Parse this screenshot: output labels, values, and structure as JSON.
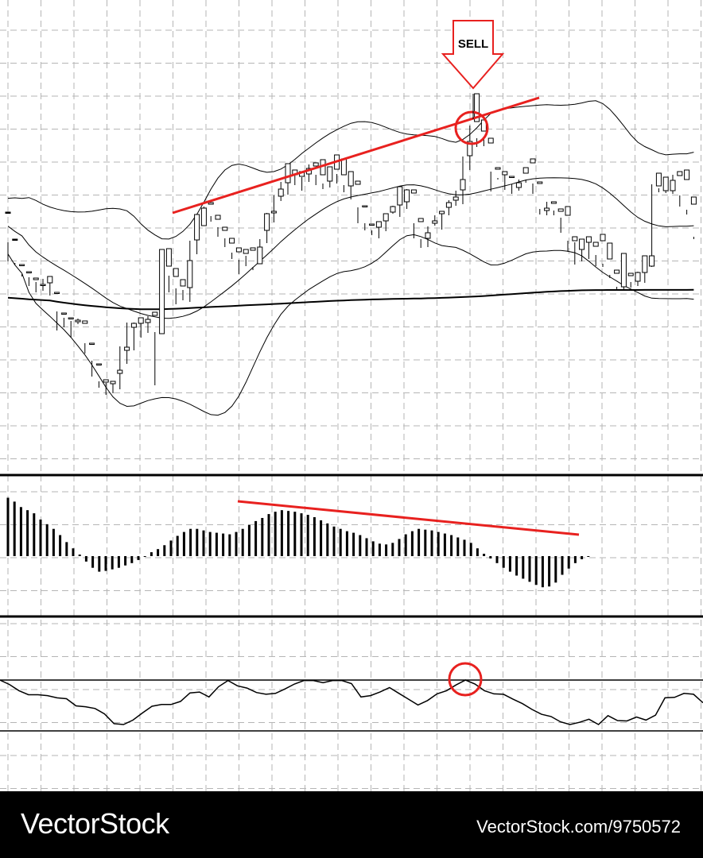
{
  "signal": {
    "label": "SELL"
  },
  "footer": {
    "brand": "VectorStock",
    "image_id": "VectorStock.com/9750572"
  },
  "colors": {
    "background": "#ffffff",
    "grid": "#b5b5b5",
    "candle": "#000000",
    "annotation": "#e8211f"
  },
  "chart_data": [
    {
      "type": "candlestick",
      "panel": "price",
      "overlays": [
        "bollinger-bands",
        "moving-average"
      ],
      "grid": true,
      "annotations": [
        "rising-trendline",
        "highlight-circle",
        "sell-arrow"
      ],
      "candles": [
        [
          267,
          268,
          329,
          305
        ],
        [
          301,
          302,
          331,
          333
        ],
        [
          334,
          333,
          345,
          348
        ],
        [
          343,
          342,
          349,
          360
        ],
        [
          352,
          350,
          355,
          368
        ],
        [
          358,
          358,
          351,
          366
        ],
        [
          356,
          348,
          355,
          372
        ],
        [
          368,
          368,
          392,
          416
        ],
        [
          395,
          394,
          400,
          412
        ],
        [
          401,
          400,
          404,
          425
        ],
        [
          405,
          403,
          401,
          408
        ],
        [
          407,
          404,
          432,
          445
        ],
        [
          432,
          432,
          454,
          474
        ],
        [
          458,
          458,
          480,
          488
        ],
        [
          481,
          478,
          482,
          497
        ],
        [
          483,
          480,
          483,
          495
        ],
        [
          470,
          466,
          436,
          490
        ],
        [
          441,
          437,
          406,
          458
        ],
        [
          412,
          407,
          406,
          441
        ],
        [
          407,
          400,
          407,
          425
        ],
        [
          406,
          402,
          398,
          419
        ],
        [
          397,
          393,
          418,
          485
        ],
        [
          420,
          314,
          332,
          365
        ],
        [
          335,
          313,
          347,
          368
        ],
        [
          348,
          338,
          363,
          383
        ],
        [
          360,
          352,
          365,
          378
        ],
        [
          362,
          328,
          303,
          380
        ],
        [
          302,
          270,
          281,
          320
        ],
        [
          284,
          262,
          260,
          266
        ],
        [
          257,
          255,
          272,
          279
        ],
        [
          276,
          271,
          286,
          298
        ],
        [
          290,
          286,
          300,
          311
        ],
        [
          306,
          300,
          318,
          326
        ],
        [
          317,
          312,
          327,
          345
        ],
        [
          319,
          314,
          322,
          335
        ],
        [
          315,
          312,
          336,
          340
        ],
        [
          332,
          311,
          301,
          316
        ],
        [
          290,
          269,
          268,
          306
        ],
        [
          268,
          266,
          246,
          280
        ],
        [
          247,
          238,
          229,
          253
        ],
        [
          230,
          206,
          218,
          245
        ],
        [
          220,
          214,
          217,
          233
        ],
        [
          222,
          216,
          223,
          240
        ],
        [
          219,
          212,
          207,
          229
        ],
        [
          209,
          205,
          220,
          233
        ],
        [
          220,
          201,
          231,
          238
        ],
        [
          228,
          210,
          210,
          236
        ],
        [
          213,
          195,
          219,
          231
        ],
        [
          220,
          200,
          233,
          242
        ],
        [
          234,
          216,
          232,
          251
        ],
        [
          232,
          228,
          261,
          281
        ],
        [
          260,
          259,
          281,
          290
        ],
        [
          282,
          282,
          290,
          296
        ],
        [
          286,
          279,
          279,
          300
        ],
        [
          278,
          269,
          271,
          291
        ],
        [
          267,
          260,
          259,
          269
        ],
        [
          258,
          235,
          255,
          273
        ],
        [
          254,
          239,
          238,
          263
        ],
        [
          243,
          239,
          281,
          300
        ],
        [
          279,
          275,
          301,
          312
        ],
        [
          300,
          293,
          285,
          311
        ],
        [
          281,
          278,
          271,
          284
        ],
        [
          269,
          266,
          268,
          289
        ],
        [
          261,
          255,
          252,
          271
        ],
        [
          252,
          248,
          240,
          259
        ],
        [
          239,
          226,
          197,
          257
        ],
        [
          196,
          178,
          158,
          214
        ],
        [
          153,
          118,
          174,
          185
        ],
        [
          165,
          151,
          173,
          184
        ],
        [
          180,
          174,
          216,
          241
        ],
        [
          213,
          211,
          224,
          226
        ],
        [
          220,
          216,
          218,
          239
        ],
        [
          223,
          222,
          232,
          244
        ],
        [
          236,
          230,
          226,
          240
        ],
        [
          218,
          211,
          226,
          230
        ],
        [
          205,
          200,
          231,
          244
        ],
        [
          231,
          229,
          263,
          270
        ],
        [
          265,
          262,
          254,
          271
        ],
        [
          256,
          254,
          265,
          271
        ],
        [
          266,
          263,
          274,
          293
        ],
        [
          271,
          260,
          303,
          317
        ],
        [
          303,
          298,
          305,
          333
        ],
        [
          314,
          301,
          310,
          329
        ],
        [
          305,
          298,
          301,
          326
        ],
        [
          310,
          305,
          321,
          335
        ],
        [
          303,
          295,
          332,
          336
        ],
        [
          326,
          306,
          346,
          350
        ],
        [
          344,
          340,
          361,
          366
        ],
        [
          361,
          319,
          348,
          364
        ],
        [
          347,
          344,
          355,
          362
        ],
        [
          354,
          343,
          342,
          360
        ],
        [
          343,
          322,
          338,
          356
        ],
        [
          335,
          322,
          232,
          336
        ],
        [
          234,
          218,
          237,
          242
        ],
        [
          240,
          223,
          238,
          243
        ],
        [
          240,
          227,
          220,
          244
        ],
        [
          221,
          216,
          246,
          260
        ],
        [
          226,
          214,
          264,
          270
        ],
        [
          257,
          248,
          298,
          301
        ]
      ]
    },
    {
      "type": "bar",
      "panel": "oscillator",
      "annotations": [
        "falling-trendline"
      ],
      "values": [
        75,
        70,
        63,
        59,
        55,
        47,
        41,
        35,
        27,
        18,
        10,
        2,
        -7,
        -15,
        -20,
        -19,
        -17,
        -15,
        -12,
        -9,
        -5,
        0,
        5,
        9,
        14,
        20,
        26,
        31,
        35,
        35,
        33,
        31,
        30,
        29,
        28,
        31,
        35,
        40,
        45,
        49,
        54,
        57,
        59,
        58,
        57,
        55,
        53,
        50,
        46,
        42,
        38,
        35,
        32,
        30,
        27,
        23,
        19,
        16,
        15,
        17,
        22,
        28,
        32,
        35,
        34,
        33,
        31,
        29,
        27,
        24,
        21,
        17,
        10,
        3,
        -3,
        -9,
        -15,
        -20,
        -25,
        -29,
        -33,
        -37,
        -40,
        -39,
        -34,
        -24,
        -16,
        -9,
        -4,
        0
      ]
    },
    {
      "type": "line",
      "panel": "oscillator-2",
      "annotations": [
        "highlight-circle"
      ],
      "values": [
        100,
        90,
        76,
        67,
        67,
        65,
        60,
        58,
        42,
        40,
        36,
        24,
        2,
        0,
        10,
        26,
        41,
        45,
        45,
        52,
        71,
        73,
        62,
        85,
        99,
        87,
        82,
        72,
        68,
        70,
        80,
        91,
        99,
        99,
        94,
        99,
        99,
        92,
        62,
        65,
        73,
        83,
        70,
        57,
        44,
        54,
        69,
        76,
        89,
        100,
        91,
        76,
        69,
        68,
        57,
        47,
        34,
        23,
        18,
        6,
        0,
        5,
        12,
        0,
        20,
        9,
        8,
        17,
        10,
        21,
        60,
        61,
        70,
        68,
        49
      ]
    }
  ]
}
